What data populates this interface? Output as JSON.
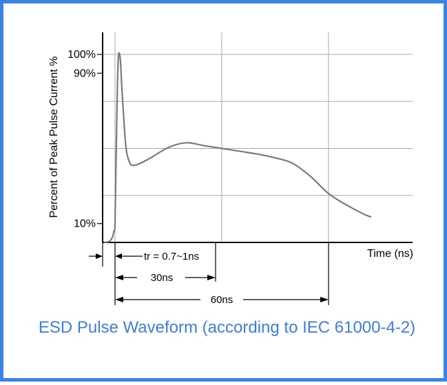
{
  "colors": {
    "border": "#3b82e6",
    "caption": "#3d7de0",
    "grid": "#a8a8a8",
    "curve": "#7a7a7a",
    "axis": "#000000"
  },
  "caption": "ESD Pulse Waveform (according to IEC 61000-4-2)",
  "chart_data": {
    "type": "line",
    "ylabel": "Percent of Peak Pulse Current %",
    "xlabel": "Time (ns)",
    "y_tick_labels": [
      {
        "label": "100%",
        "value": 100
      },
      {
        "label": "90%",
        "value": 90
      },
      {
        "label": "10%",
        "value": 10
      }
    ],
    "grid": true,
    "xlim": [
      -3,
      82
    ],
    "ylim": [
      0,
      100
    ],
    "vertical_gridlines_ns": [
      0,
      30,
      60
    ],
    "horizontal_gridlines_pct": [
      25,
      50,
      75,
      100
    ],
    "series": [
      {
        "x": [
          -3,
          -1.5,
          -0.7,
          -0.3,
          0,
          0.3,
          0.7,
          1,
          1.5,
          2,
          3,
          4,
          5,
          7,
          10,
          15,
          20,
          25,
          30,
          35,
          40,
          45,
          50,
          55,
          60,
          65,
          70,
          72
        ],
        "y": [
          0,
          0.7,
          3,
          6,
          10,
          45,
          85,
          100,
          97,
          80,
          52,
          43,
          41,
          42,
          45,
          50.5,
          53,
          51.5,
          50,
          48.5,
          47,
          45,
          42,
          35,
          26,
          20,
          15,
          13.5
        ]
      }
    ],
    "annotations": [
      {
        "text": "tr = 0.7~1ns",
        "from_ns": -3,
        "to_ns": 0
      },
      {
        "text": "30ns",
        "from_ns": 0,
        "to_ns": 30
      },
      {
        "text": "60ns",
        "from_ns": 0,
        "to_ns": 60
      }
    ]
  }
}
